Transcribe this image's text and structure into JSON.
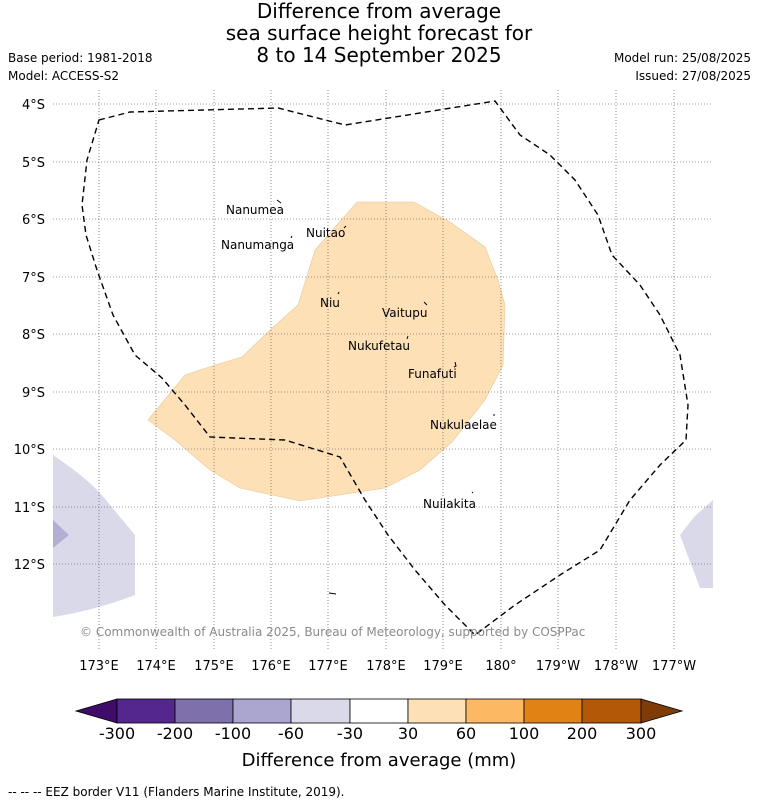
{
  "title": {
    "line1": "Difference from average",
    "line2": "sea surface height forecast for",
    "line3": "8 to 14 September 2025"
  },
  "meta": {
    "base_period": "Base period: 1981-2018",
    "model": "Model: ACCESS-S2",
    "model_run": "Model run: 25/08/2025",
    "issued": "Issued: 27/08/2025"
  },
  "map": {
    "lat_labels": [
      "4°S",
      "5°S",
      "6°S",
      "7°S",
      "8°S",
      "9°S",
      "10°S",
      "11°S",
      "12°S"
    ],
    "lon_labels": [
      "173°E",
      "174°E",
      "175°E",
      "176°E",
      "177°E",
      "178°E",
      "179°E",
      "180°",
      "179°W",
      "178°W",
      "177°W"
    ],
    "islands": [
      {
        "name": "Nanumea"
      },
      {
        "name": "Nuitao"
      },
      {
        "name": "Nanumanga"
      },
      {
        "name": "Niu"
      },
      {
        "name": "Vaitupu"
      },
      {
        "name": "Nukufetau"
      },
      {
        "name": "Funafuti"
      },
      {
        "name": "Nukulaelae"
      },
      {
        "name": "Nuilakita"
      }
    ],
    "fill_colors": {
      "positive_30_60": "#fde0b6",
      "negative_60_30": "#d9d9ea",
      "negative_100_60": "#b3aed4"
    },
    "copyright": "© Commonwealth of Australia 2025, Bureau of Meteorology, supported by COSPPac"
  },
  "colorbar": {
    "ticks": [
      "-300",
      "-200",
      "-100",
      "-60",
      "-30",
      "30",
      "60",
      "100",
      "200",
      "300"
    ],
    "colors": [
      "#3f0c69",
      "#54278f",
      "#7d70ab",
      "#aba6cf",
      "#d9d9ea",
      "#ffffff",
      "#fde0b6",
      "#fdb863",
      "#e08214",
      "#b35806",
      "#7f3b08"
    ],
    "label": "Difference from average (mm)"
  },
  "footnote": "--  --  -- EEZ border V11 (Flanders Marine Institute, 2019)."
}
